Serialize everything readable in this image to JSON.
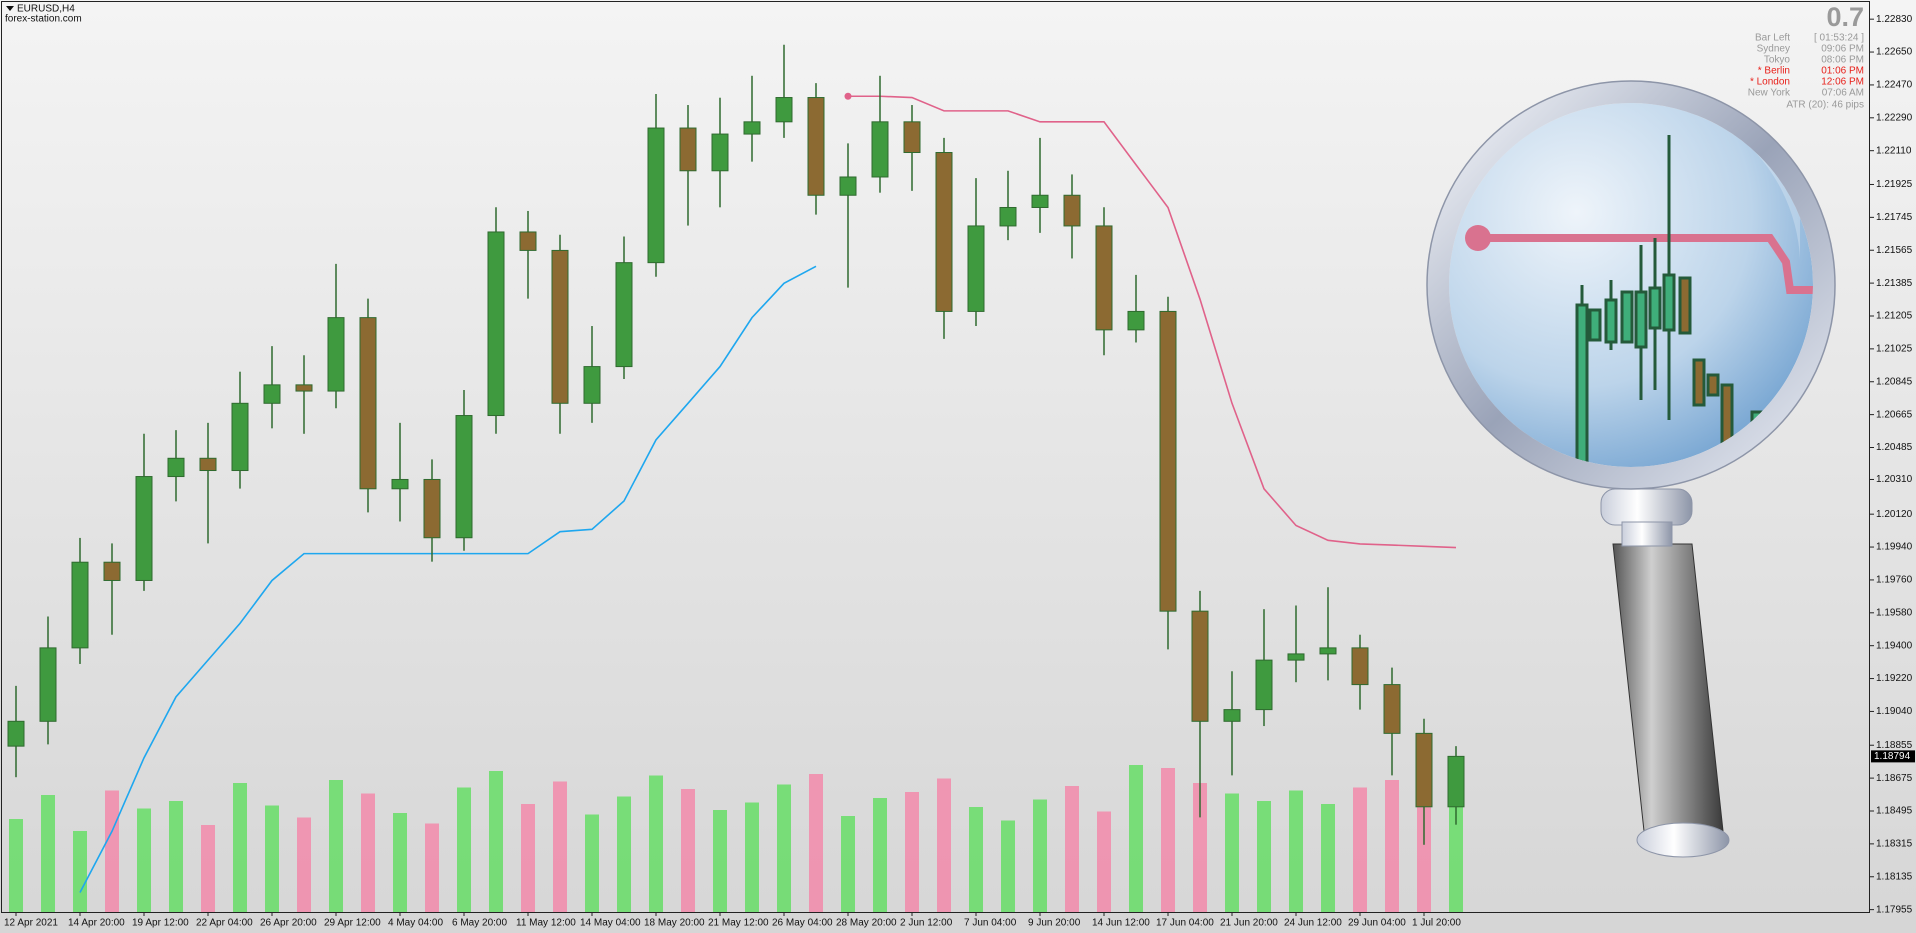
{
  "header": {
    "symbol": "EURUSD,H4",
    "site": "forex-station.com"
  },
  "info_panel": {
    "big_value": "0.7",
    "rows": [
      {
        "label": "Bar Left",
        "value": "[ 01:53:24 ]",
        "color": "#9a9a9a"
      },
      {
        "label": "Sydney",
        "value": "09:06 PM",
        "color": "#9a9a9a"
      },
      {
        "label": "Tokyo",
        "value": "08:06 PM",
        "color": "#9a9a9a"
      },
      {
        "label": "* Berlin",
        "value": "01:06 PM",
        "color": "#e8201a"
      },
      {
        "label": "* London",
        "value": "12:06 PM",
        "color": "#e8201a"
      },
      {
        "label": "New York",
        "value": "07:06 AM",
        "color": "#9a9a9a"
      }
    ],
    "atr": "ATR (20): 46 pips"
  },
  "chart_data": {
    "type": "candlestick",
    "categories": [
      "12 Apr 2021",
      null,
      "14 Apr 20:00",
      null,
      "19 Apr 12:00",
      null,
      "22 Apr 04:00",
      null,
      "26 Apr 20:00",
      null,
      "29 Apr 12:00",
      null,
      "4 May 04:00",
      null,
      "6 May 20:00",
      null,
      "11 May 12:00",
      null,
      "14 May 04:00",
      null,
      "18 May 20:00",
      null,
      "21 May 12:00",
      null,
      "26 May 04:00",
      null,
      "28 May 20:00",
      null,
      "2 Jun 12:00",
      null,
      "7 Jun 04:00",
      null,
      "9 Jun 20:00",
      null,
      "14 Jun 12:00",
      null,
      "17 Jun 04:00",
      null,
      "21 Jun 20:00",
      null,
      "24 Jun 12:00",
      null,
      "29 Jun 04:00",
      null,
      "1 Jul 20:00",
      null
    ],
    "open": [
      1.1885,
      1.18986,
      1.19388,
      1.19857,
      1.19757,
      1.20326,
      1.20426,
      1.20359,
      1.20727,
      1.20828,
      1.20794,
      1.21196,
      1.20259,
      1.2031,
      1.19991,
      1.2066,
      1.21665,
      1.21564,
      1.20727,
      1.20928,
      1.21497,
      1.22234,
      1.22,
      1.22201,
      1.22268,
      1.22401,
      1.21866,
      1.21966,
      1.22268,
      1.221,
      1.2123,
      1.21698,
      1.21799,
      1.21866,
      1.21698,
      1.21129,
      1.2123,
      1.19589,
      1.18986,
      1.1905,
      1.19321,
      1.19355,
      1.19388,
      1.19187,
      1.1892,
      1.18518
    ],
    "high": [
      1.1918,
      1.1956,
      1.1999,
      1.1996,
      1.2056,
      1.2058,
      1.2062,
      1.209,
      1.2104,
      1.2099,
      1.2149,
      1.213,
      1.2062,
      1.2042,
      1.208,
      1.218,
      1.2178,
      1.2165,
      1.2115,
      1.2164,
      1.2242,
      1.2236,
      1.224,
      1.2252,
      1.2269,
      1.2248,
      1.2215,
      1.2252,
      1.2236,
      1.2218,
      1.2196,
      1.22,
      1.2218,
      1.2198,
      1.218,
      1.2143,
      1.2131,
      1.197,
      1.1926,
      1.196,
      1.1962,
      1.1972,
      1.1946,
      1.1928,
      1.19,
      1.1885
    ],
    "low": [
      1.1868,
      1.1886,
      1.193,
      1.1946,
      1.197,
      1.2019,
      1.1996,
      1.2026,
      1.2059,
      1.2056,
      1.207,
      1.2013,
      1.2008,
      1.1986,
      1.1992,
      1.2056,
      1.213,
      1.2056,
      1.2062,
      1.2086,
      1.2142,
      1.217,
      1.218,
      1.2205,
      1.2218,
      1.2176,
      1.2136,
      1.2188,
      1.2189,
      1.2108,
      1.2115,
      1.2162,
      1.2166,
      1.2152,
      1.2099,
      1.2106,
      1.1938,
      1.1846,
      1.1869,
      1.1896,
      1.192,
      1.1921,
      1.1905,
      1.1869,
      1.1831,
      1.1842
    ],
    "close": [
      1.18986,
      1.19388,
      1.19857,
      1.19757,
      1.20326,
      1.20426,
      1.20359,
      1.20727,
      1.20828,
      1.20794,
      1.21196,
      1.20259,
      1.2031,
      1.19991,
      1.2066,
      1.21665,
      1.21564,
      1.20727,
      1.20928,
      1.21497,
      1.22234,
      1.22,
      1.22201,
      1.22268,
      1.22401,
      1.21866,
      1.21966,
      1.22268,
      1.221,
      1.2123,
      1.21698,
      1.21799,
      1.21866,
      1.21698,
      1.21129,
      1.2123,
      1.19589,
      1.18986,
      1.1905,
      1.19321,
      1.19355,
      1.19388,
      1.19187,
      1.1892,
      1.18518,
      1.18794
    ],
    "up_color": "#3f9a3f",
    "down_color": "#8c6a32",
    "wick_color": "#2f6a2f",
    "lines": [
      {
        "color": "#1ea7ef",
        "values": [
          null,
          null,
          1.18049,
          1.18384,
          1.18786,
          1.1912,
          1.19321,
          1.19522,
          1.19757,
          1.19904,
          1.19904,
          1.19904,
          1.19904,
          1.19904,
          1.19904,
          1.19904,
          1.19904,
          1.20024,
          1.20037,
          1.20192,
          1.20527,
          1.20727,
          1.20928,
          1.21196,
          1.21384,
          1.21477,
          null,
          null,
          null,
          null,
          null,
          null,
          null,
          null,
          null,
          null,
          null,
          null,
          null,
          null,
          null,
          null,
          null,
          null,
          null,
          null
        ]
      },
      {
        "color": "#e0628a",
        "values": [
          null,
          null,
          null,
          null,
          null,
          null,
          null,
          null,
          null,
          null,
          null,
          null,
          null,
          null,
          null,
          null,
          null,
          null,
          null,
          null,
          null,
          null,
          null,
          null,
          null,
          null,
          1.22408,
          1.22408,
          1.22401,
          1.22328,
          1.22328,
          1.22328,
          1.22268,
          1.22268,
          1.22268,
          1.22033,
          1.21799,
          1.21297,
          1.20727,
          1.20259,
          1.20058,
          1.19977,
          1.19957,
          1.19951,
          1.19944,
          1.19937
        ]
      }
    ],
    "volume": {
      "values": [
        6200,
        7800,
        5400,
        8100,
        6900,
        7400,
        5800,
        8600,
        7100,
        6300,
        8800,
        7900,
        6600,
        5900,
        8300,
        9400,
        7200,
        8700,
        6500,
        7700,
        9100,
        8200,
        6800,
        7300,
        8500,
        9200,
        6400,
        7600,
        8000,
        8900,
        7000,
        6100,
        7500,
        8400,
        6700,
        9800,
        9600,
        8600,
        7900,
        7400,
        8100,
        7200,
        8300,
        8800,
        9500,
        7100
      ],
      "ylim": [
        0,
        10000
      ],
      "up_color": "#66dd66",
      "down_color": "#f28aaa"
    },
    "ylim": [
      1.17942,
      1.22924
    ],
    "yticks": [
      {
        "value": 1.2283,
        "label": "1.22830"
      },
      {
        "value": 1.2265,
        "label": "1.22650"
      },
      {
        "value": 1.2247,
        "label": "1.22470"
      },
      {
        "value": 1.2229,
        "label": "1.22290"
      },
      {
        "value": 1.2211,
        "label": "1.22110"
      },
      {
        "value": 1.21925,
        "label": "1.21925"
      },
      {
        "value": 1.21745,
        "label": "1.21745"
      },
      {
        "value": 1.21565,
        "label": "1.21565"
      },
      {
        "value": 1.21385,
        "label": "1.21385"
      },
      {
        "value": 1.21205,
        "label": "1.21205"
      },
      {
        "value": 1.21025,
        "label": "1.21025"
      },
      {
        "value": 1.20845,
        "label": "1.20845"
      },
      {
        "value": 1.20665,
        "label": "1.20665"
      },
      {
        "value": 1.20485,
        "label": "1.20485"
      },
      {
        "value": 1.2031,
        "label": "1.20310"
      },
      {
        "value": 1.2012,
        "label": "1.20120"
      },
      {
        "value": 1.1994,
        "label": "1.19940"
      },
      {
        "value": 1.1976,
        "label": "1.19760"
      },
      {
        "value": 1.1958,
        "label": "1.19580"
      },
      {
        "value": 1.194,
        "label": "1.19400"
      },
      {
        "value": 1.1922,
        "label": "1.19220"
      },
      {
        "value": 1.1904,
        "label": "1.19040"
      },
      {
        "value": 1.18855,
        "label": "1.18855"
      },
      {
        "value": 1.18675,
        "label": "1.18675"
      },
      {
        "value": 1.18495,
        "label": "1.18495"
      },
      {
        "value": 1.18315,
        "label": "1.18315"
      },
      {
        "value": 1.18135,
        "label": "1.18135"
      },
      {
        "value": 1.17955,
        "label": "1.17955"
      }
    ],
    "last_price": 1.18794
  }
}
